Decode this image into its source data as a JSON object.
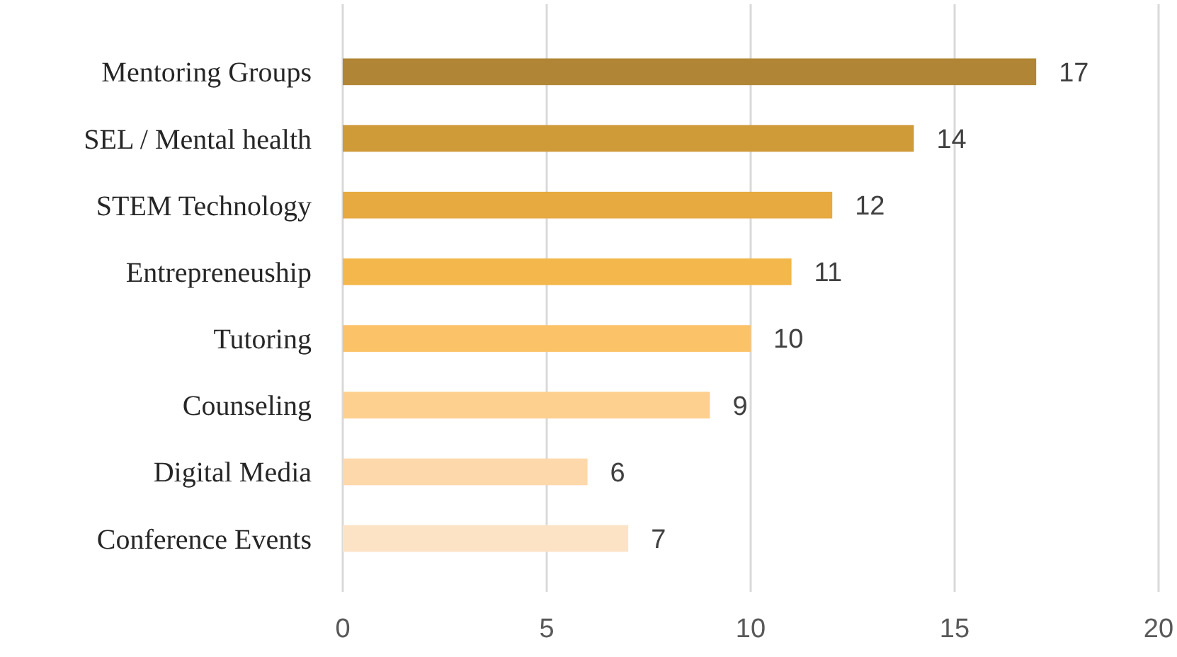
{
  "chart_data": {
    "type": "bar",
    "orientation": "horizontal",
    "categories": [
      "Mentoring Groups",
      "SEL / Mental health",
      "STEM Technology",
      "Entrepreneuship",
      "Tutoring",
      "Counseling",
      "Digital Media",
      "Conference Events"
    ],
    "values": [
      17,
      14,
      12,
      11,
      10,
      9,
      6,
      7
    ],
    "colors": [
      "#b08535",
      "#cf9a38",
      "#e6aa41",
      "#f4b74c",
      "#fcc268",
      "#fdd08f",
      "#fdd8aa",
      "#fde3c6"
    ],
    "xlim": [
      0,
      20
    ],
    "xticks": [
      0,
      5,
      10,
      15,
      20
    ],
    "grid": "x",
    "data_labels": true
  }
}
